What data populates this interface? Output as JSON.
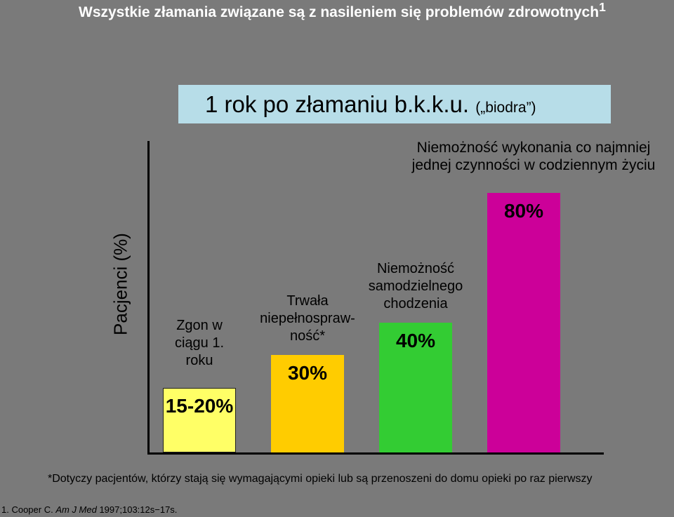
{
  "header": {
    "title": "Wszystkie złamania związane są z nasileniem się problemów zdrowotnych",
    "title_sup": "1"
  },
  "chart_data": {
    "type": "bar",
    "subtitle_main": "1 rok po złamaniu b.k.k.u.",
    "subtitle_paren": "(„biodra”)",
    "ylabel": "Pacjenci (%)",
    "categories": [
      "Zgon w\nciągu 1.\nroku",
      "Trwała\nniepełnospraw-\nność*",
      "Niemożność\nsamodzielnego\nchodzenia",
      "Niemożność wykonania co najmniej\njednej czynności w codziennym życiu"
    ],
    "values": [
      20,
      30,
      40,
      80
    ],
    "value_labels": [
      "15-20%",
      "30%",
      "40%",
      "80%"
    ],
    "colors": [
      "#ffff66",
      "#ffcc00",
      "#33cc33",
      "#cc0099"
    ],
    "ylim": [
      0,
      90
    ],
    "grid": false,
    "legend": "none"
  },
  "footnote": "*Dotyczy pacjentów, którzy stają się wymagającymi opieki lub są przenoszeni do domu opieki po raz pierwszy",
  "reference": {
    "prefix": "1. Cooper C. ",
    "journal": "Am J Med",
    "suffix": " 1997;103:12s−17s."
  }
}
